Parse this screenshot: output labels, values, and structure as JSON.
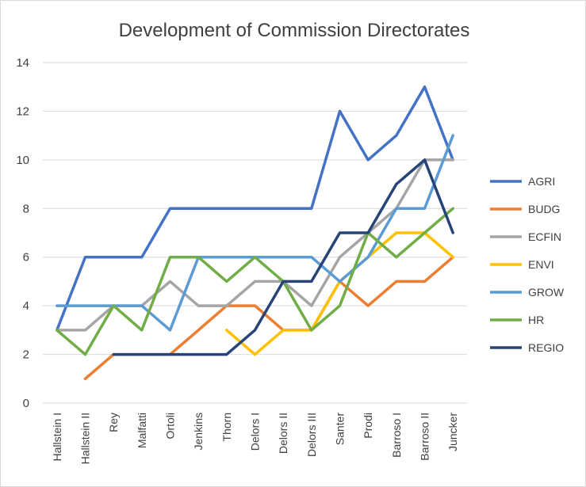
{
  "chart_data": {
    "type": "line",
    "title": "Development of Commission Directorates",
    "xlabel": "",
    "ylabel": "",
    "ylim": [
      0,
      14
    ],
    "yticks": [
      0,
      2,
      4,
      6,
      8,
      10,
      12,
      14
    ],
    "grid": true,
    "legend_position": "right",
    "categories": [
      "Hallstein I",
      "Hallstein II",
      "Rey",
      "Malfatti",
      "Ortoli",
      "Jenkins",
      "Thorn",
      "Delors I",
      "Delors II",
      "Delors III",
      "Santer",
      "Prodi",
      "Barroso I",
      "Barroso II",
      "Juncker"
    ],
    "series": [
      {
        "name": "AGRI",
        "color": "#4472c4",
        "values": [
          3,
          6,
          6,
          6,
          8,
          8,
          8,
          8,
          8,
          8,
          12,
          10,
          11,
          13,
          10
        ]
      },
      {
        "name": "BUDG",
        "color": "#ed7d31",
        "values": [
          null,
          1,
          2,
          2,
          2,
          3,
          4,
          4,
          3,
          3,
          5,
          4,
          5,
          5,
          6
        ]
      },
      {
        "name": "ECFIN",
        "color": "#a5a5a5",
        "values": [
          3,
          3,
          4,
          4,
          5,
          4,
          4,
          5,
          5,
          4,
          6,
          7,
          8,
          10,
          10
        ]
      },
      {
        "name": "ENVI",
        "color": "#ffc000",
        "values": [
          null,
          null,
          null,
          null,
          null,
          null,
          3,
          2,
          3,
          3,
          5,
          6,
          7,
          7,
          6
        ]
      },
      {
        "name": "GROW",
        "color": "#5b9bd5",
        "values": [
          4,
          4,
          4,
          4,
          3,
          6,
          6,
          6,
          6,
          6,
          5,
          6,
          8,
          8,
          11
        ]
      },
      {
        "name": "HR",
        "color": "#70ad47",
        "values": [
          3,
          2,
          4,
          3,
          6,
          6,
          5,
          6,
          5,
          3,
          4,
          7,
          6,
          7,
          8
        ]
      },
      {
        "name": "REGIO",
        "color": "#264478",
        "values": [
          null,
          null,
          2,
          2,
          2,
          2,
          2,
          3,
          5,
          5,
          7,
          7,
          9,
          10,
          7
        ]
      }
    ]
  }
}
